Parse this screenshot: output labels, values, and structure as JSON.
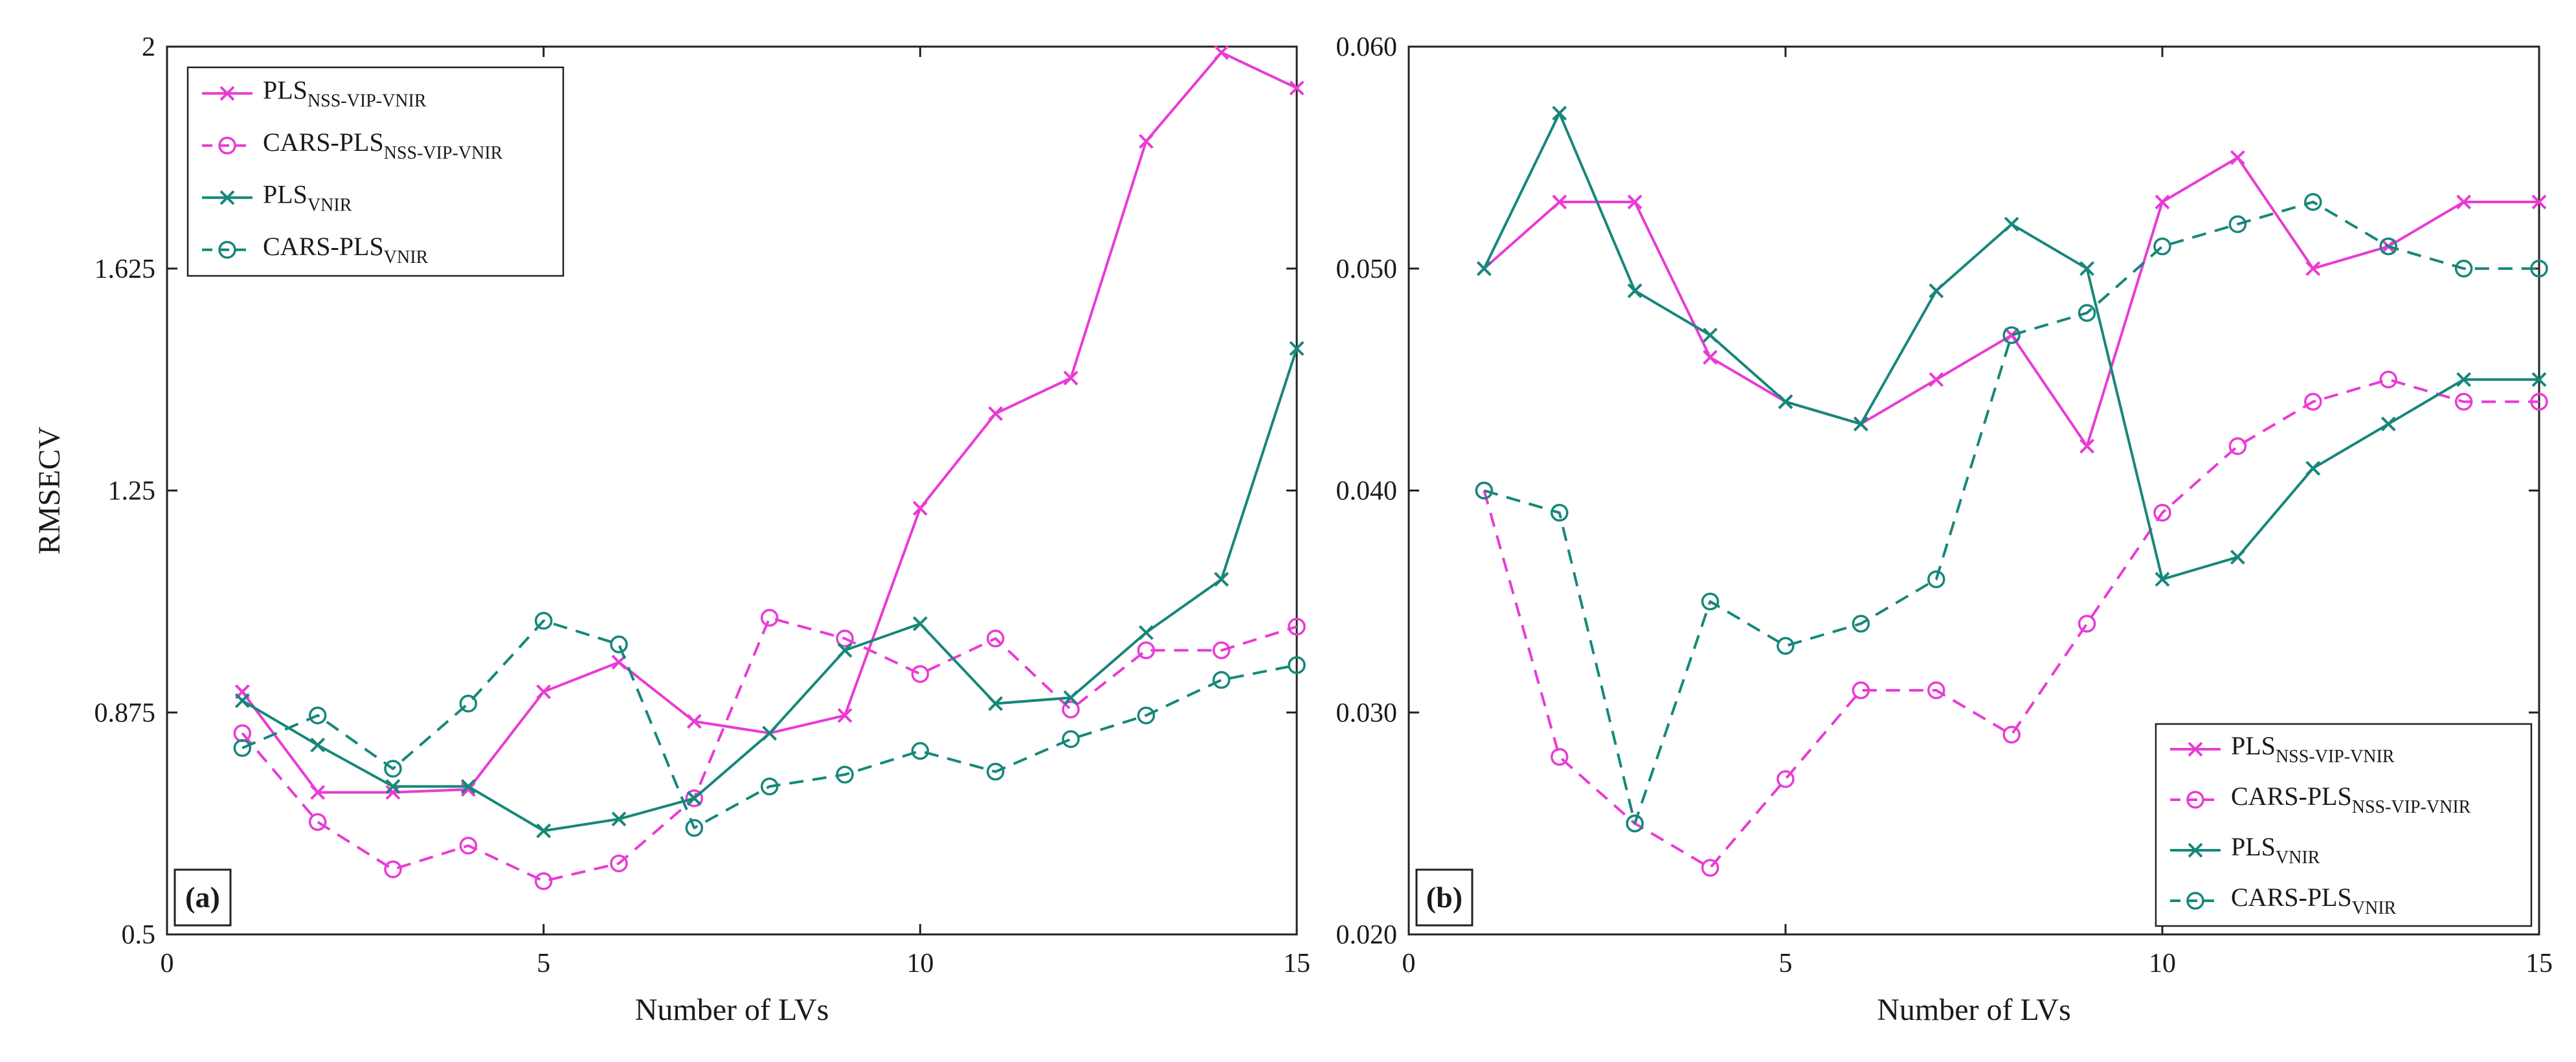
{
  "colors": {
    "magenta": "#E93BD4",
    "teal": "#16877A",
    "axis": "#222222"
  },
  "chart_data": [
    {
      "type": "line",
      "panel_tag": "(a)",
      "xlabel": "Number of LVs",
      "ylabel": "RMSECV",
      "xlim": [
        0,
        15
      ],
      "ylim": [
        0.5,
        2
      ],
      "xticks": [
        0,
        5,
        10,
        15
      ],
      "xtick_labels": [
        "0",
        "5",
        "10",
        "15"
      ],
      "yticks": [
        0.5,
        0.875,
        1.25,
        1.625,
        2
      ],
      "ytick_labels": [
        "0.5",
        "0.875",
        "1.25",
        "1.625",
        "2"
      ],
      "legend_location": "top-left",
      "x": [
        1,
        2,
        3,
        4,
        5,
        6,
        7,
        8,
        9,
        10,
        11,
        12,
        13,
        14,
        15
      ],
      "series": [
        {
          "name": "PLS",
          "sub": "NSS-VIP-VNIR",
          "color": "magenta",
          "marker": "x",
          "dashed": false,
          "values": [
            0.91,
            0.74,
            0.74,
            0.745,
            0.91,
            0.96,
            0.86,
            0.84,
            0.87,
            1.22,
            1.38,
            1.44,
            1.84,
            1.99,
            1.93
          ]
        },
        {
          "name": "CARS-PLS",
          "sub": "NSS-VIP-VNIR",
          "color": "magenta",
          "marker": "o",
          "dashed": true,
          "values": [
            0.84,
            0.69,
            0.61,
            0.65,
            0.59,
            0.62,
            0.73,
            1.035,
            1.0,
            0.94,
            1.0,
            0.88,
            0.98,
            0.98,
            1.02
          ]
        },
        {
          "name": "PLS",
          "sub": "VNIR",
          "color": "teal",
          "marker": "x",
          "dashed": false,
          "values": [
            0.895,
            0.82,
            0.75,
            0.75,
            0.675,
            0.695,
            0.73,
            0.84,
            0.98,
            1.025,
            0.89,
            0.9,
            1.01,
            1.1,
            1.49
          ]
        },
        {
          "name": "CARS-PLS",
          "sub": "VNIR",
          "color": "teal",
          "marker": "o",
          "dashed": true,
          "values": [
            0.815,
            0.87,
            0.78,
            0.89,
            1.03,
            0.99,
            0.68,
            0.75,
            0.77,
            0.81,
            0.775,
            0.83,
            0.87,
            0.93,
            0.955
          ]
        }
      ]
    },
    {
      "type": "line",
      "panel_tag": "(b)",
      "xlabel": "Number of LVs",
      "ylabel": "",
      "xlim": [
        0,
        15
      ],
      "ylim": [
        0.02,
        0.06
      ],
      "xticks": [
        0,
        5,
        10,
        15
      ],
      "xtick_labels": [
        "0",
        "5",
        "10",
        "15"
      ],
      "yticks": [
        0.02,
        0.03,
        0.04,
        0.05,
        0.06
      ],
      "ytick_labels": [
        "0.020",
        "0.030",
        "0.040",
        "0.050",
        "0.060"
      ],
      "legend_location": "bottom-right",
      "x": [
        1,
        2,
        3,
        4,
        5,
        6,
        7,
        8,
        9,
        10,
        11,
        12,
        13,
        14,
        15
      ],
      "series": [
        {
          "name": "PLS",
          "sub": "NSS-VIP-VNIR",
          "color": "magenta",
          "marker": "x",
          "dashed": false,
          "values": [
            0.05,
            0.053,
            0.053,
            0.046,
            0.044,
            0.043,
            0.045,
            0.047,
            0.042,
            0.053,
            0.055,
            0.05,
            0.051,
            0.053,
            0.053
          ]
        },
        {
          "name": "CARS-PLS",
          "sub": "NSS-VIP-VNIR",
          "color": "magenta",
          "marker": "o",
          "dashed": true,
          "values": [
            0.04,
            0.028,
            0.025,
            0.023,
            0.027,
            0.031,
            0.031,
            0.029,
            0.034,
            0.039,
            0.042,
            0.044,
            0.045,
            0.044,
            0.044
          ]
        },
        {
          "name": "PLS",
          "sub": "VNIR",
          "color": "teal",
          "marker": "x",
          "dashed": false,
          "values": [
            0.05,
            0.057,
            0.049,
            0.047,
            0.044,
            0.043,
            0.049,
            0.052,
            0.05,
            0.036,
            0.037,
            0.041,
            0.043,
            0.045,
            0.045
          ]
        },
        {
          "name": "CARS-PLS",
          "sub": "VNIR",
          "color": "teal",
          "marker": "o",
          "dashed": true,
          "values": [
            0.04,
            0.039,
            0.025,
            0.035,
            0.033,
            0.034,
            0.036,
            0.047,
            0.048,
            0.051,
            0.052,
            0.053,
            0.051,
            0.05,
            0.05
          ]
        }
      ]
    }
  ]
}
